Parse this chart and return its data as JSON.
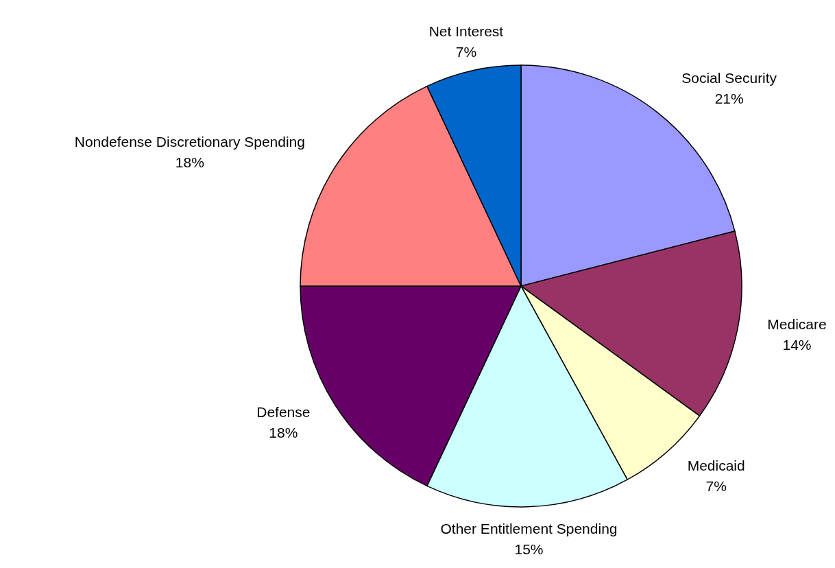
{
  "chart_data": {
    "type": "pie",
    "categories": [
      "Social Security",
      "Medicare",
      "Medicaid",
      "Other Entitlement Spending",
      "Defense",
      "Nondefense Discretionary Spending",
      "Net Interest"
    ],
    "values": [
      21,
      14,
      7,
      15,
      18,
      18,
      7
    ],
    "colors": [
      "#9999ff",
      "#993366",
      "#ffffcc",
      "#ccffff",
      "#660066",
      "#ff8080",
      "#0066cc"
    ],
    "value_labels": [
      "21%",
      "14%",
      "7%",
      "15%",
      "18%",
      "18%",
      "7%"
    ]
  }
}
